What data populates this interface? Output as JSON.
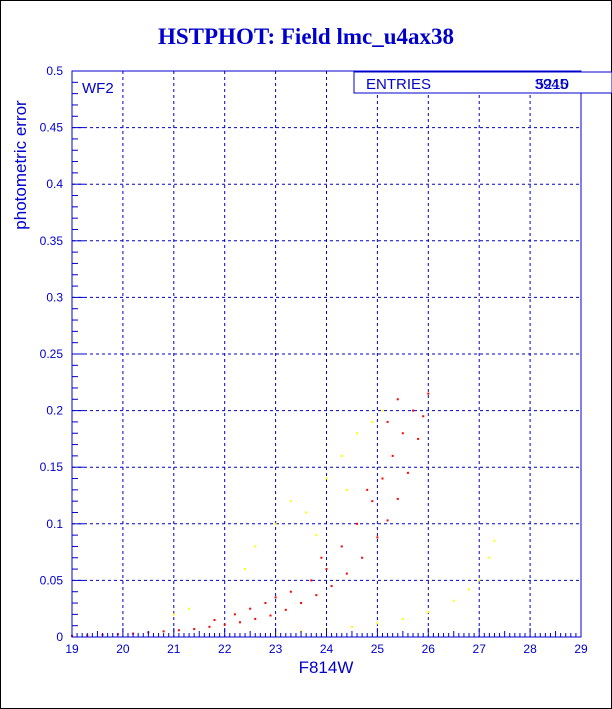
{
  "chart_data": {
    "type": "scatter",
    "title": "HSTPHOT: Field lmc_u4ax38",
    "xlabel": "F814W",
    "ylabel": "photometric error",
    "xlim": [
      19,
      29
    ],
    "ylim": [
      0,
      0.5
    ],
    "x_ticks": [
      "19",
      "20",
      "21",
      "22",
      "23",
      "24",
      "25",
      "26",
      "27",
      "28",
      "29"
    ],
    "y_ticks": [
      "0",
      "0.05",
      "0.1",
      "0.15",
      "0.2",
      "0.25",
      "0.3",
      "0.35",
      "0.4",
      "0.45",
      "0.5"
    ],
    "grid": true,
    "panel_label": "WF2",
    "stats_box": {
      "label": "ENTRIES",
      "values": [
        "3945",
        "5210"
      ]
    },
    "series": [
      {
        "color": "#ff0000",
        "points": [
          [
            19.0,
            0.001
          ],
          [
            19.3,
            0.0015
          ],
          [
            19.6,
            0.002
          ],
          [
            19.9,
            0.0025
          ],
          [
            20.2,
            0.003
          ],
          [
            20.5,
            0.004
          ],
          [
            20.8,
            0.005
          ],
          [
            21.1,
            0.006
          ],
          [
            21.4,
            0.007
          ],
          [
            21.7,
            0.009
          ],
          [
            22.0,
            0.011
          ],
          [
            22.3,
            0.013
          ],
          [
            22.6,
            0.016
          ],
          [
            22.9,
            0.019
          ],
          [
            23.2,
            0.024
          ],
          [
            23.5,
            0.03
          ],
          [
            23.8,
            0.037
          ],
          [
            24.1,
            0.045
          ],
          [
            24.4,
            0.056
          ],
          [
            24.7,
            0.07
          ],
          [
            25.0,
            0.088
          ],
          [
            25.2,
            0.103
          ],
          [
            25.4,
            0.122
          ],
          [
            25.6,
            0.145
          ],
          [
            25.8,
            0.175
          ],
          [
            25.9,
            0.195
          ],
          [
            26.0,
            0.215
          ],
          [
            22.2,
            0.02
          ],
          [
            22.8,
            0.03
          ],
          [
            23.3,
            0.04
          ],
          [
            23.7,
            0.05
          ],
          [
            24.0,
            0.06
          ],
          [
            24.3,
            0.08
          ],
          [
            24.6,
            0.1
          ],
          [
            24.9,
            0.12
          ],
          [
            25.1,
            0.14
          ],
          [
            25.3,
            0.16
          ],
          [
            25.5,
            0.18
          ],
          [
            25.7,
            0.2
          ],
          [
            25.4,
            0.21
          ],
          [
            25.2,
            0.19
          ],
          [
            24.8,
            0.13
          ],
          [
            23.9,
            0.07
          ],
          [
            23.0,
            0.035
          ],
          [
            22.5,
            0.025
          ],
          [
            21.8,
            0.015
          ]
        ]
      },
      {
        "color": "#ffff00",
        "points": [
          [
            23.0,
            0.003
          ],
          [
            23.5,
            0.005
          ],
          [
            24.0,
            0.007
          ],
          [
            24.5,
            0.009
          ],
          [
            25.0,
            0.012
          ],
          [
            25.5,
            0.016
          ],
          [
            26.0,
            0.022
          ],
          [
            26.5,
            0.032
          ],
          [
            26.8,
            0.042
          ],
          [
            27.0,
            0.05
          ],
          [
            27.2,
            0.07
          ],
          [
            27.3,
            0.085
          ],
          [
            22.6,
            0.08
          ],
          [
            23.0,
            0.1
          ],
          [
            23.3,
            0.12
          ],
          [
            23.6,
            0.11
          ],
          [
            24.0,
            0.14
          ],
          [
            24.3,
            0.16
          ],
          [
            24.6,
            0.18
          ],
          [
            24.9,
            0.19
          ],
          [
            25.1,
            0.2
          ],
          [
            22.4,
            0.06
          ],
          [
            23.8,
            0.09
          ],
          [
            24.4,
            0.13
          ],
          [
            21.3,
            0.025
          ],
          [
            21.0,
            0.02
          ]
        ]
      }
    ]
  }
}
